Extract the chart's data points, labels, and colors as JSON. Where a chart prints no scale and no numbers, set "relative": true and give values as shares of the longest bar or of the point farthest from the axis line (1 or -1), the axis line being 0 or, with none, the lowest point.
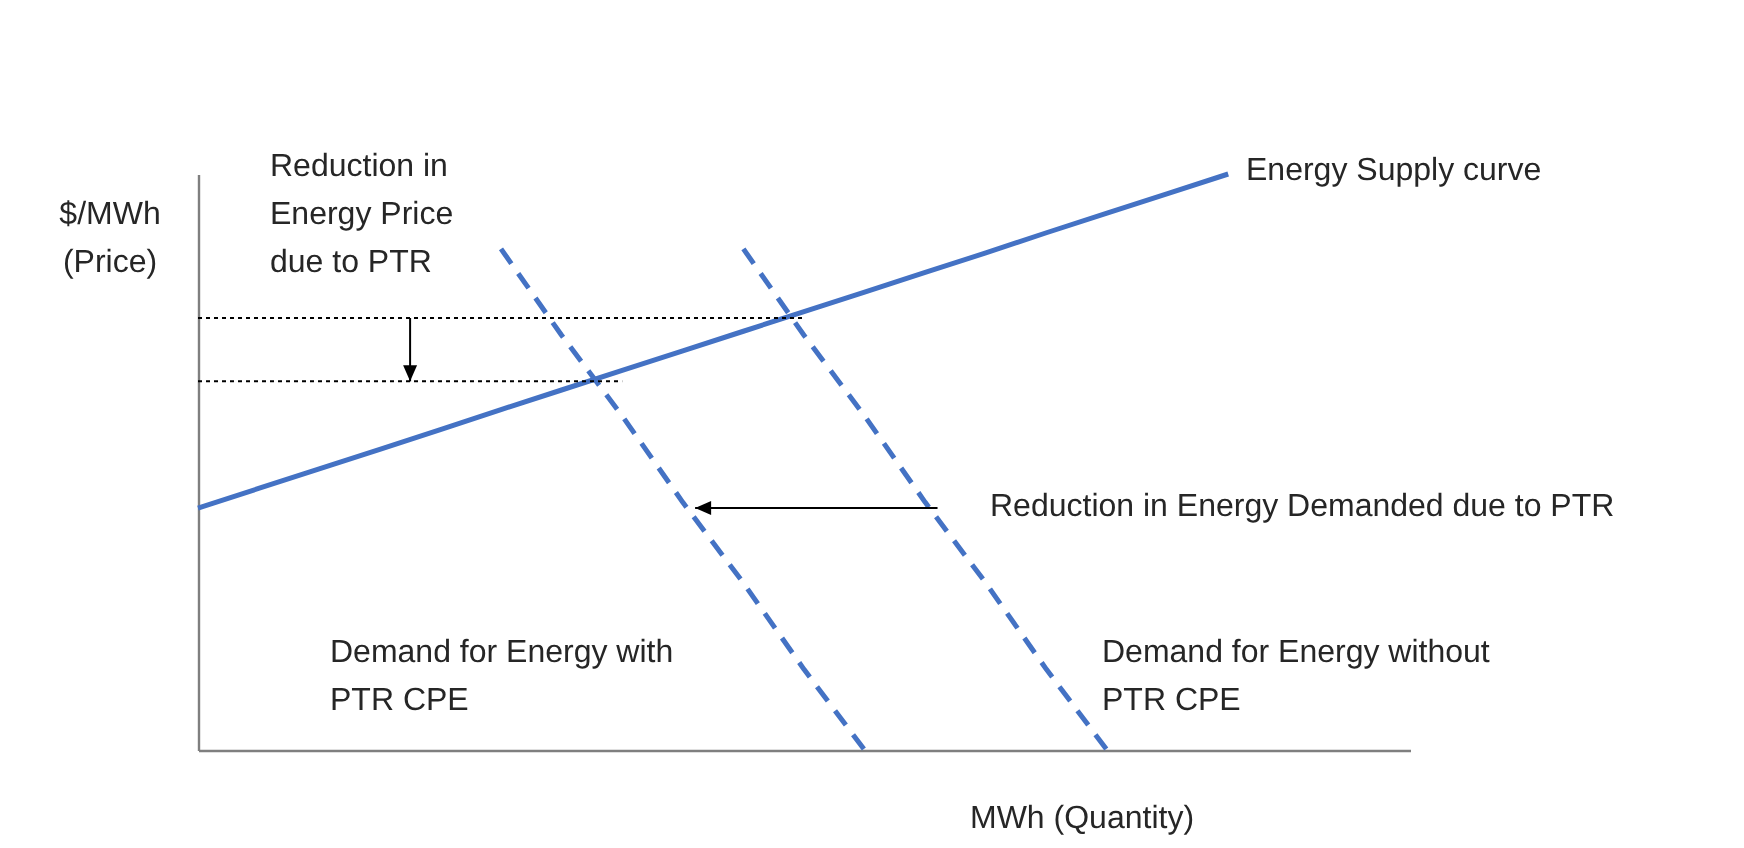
{
  "chart_data": {
    "type": "line",
    "relative": true,
    "xlabel": "MWh (Quantity)",
    "ylabel": "$/MWh (Price)",
    "annotations": [
      "Reduction in Energy Price due to PTR",
      "Reduction in Energy Demanded due to PTR"
    ],
    "categories": [
      null,
      null,
      null,
      null,
      null,
      null,
      null,
      null,
      null,
      null,
      null,
      null,
      null,
      null,
      null,
      null,
      null,
      null,
      null,
      null,
      null
    ],
    "series": [
      {
        "name": "Energy Supply curve",
        "color": "#4472c4",
        "line_style": "solid",
        "values": [
          0.42,
          0.454,
          0.488,
          0.522,
          0.556,
          0.591,
          0.625,
          0.659,
          0.693,
          0.727,
          0.761,
          0.795,
          0.829,
          0.863,
          0.898,
          0.932,
          0.966,
          1,
          null,
          null,
          null
        ]
      },
      {
        "name": "Demand for Energy without PTR CPE",
        "color": "#4472c4",
        "line_style": "dashed",
        "values": [
          null,
          null,
          null,
          null,
          null,
          null,
          null,
          null,
          null,
          0.87,
          0.72,
          0.58,
          0.43,
          0.29,
          0.14,
          0,
          null,
          null,
          null,
          null,
          null
        ]
      },
      {
        "name": "Demand for Energy with PTR CPE",
        "color": "#4472c4",
        "line_style": "dashed",
        "values": [
          null,
          null,
          null,
          null,
          null,
          0.87,
          0.72,
          0.58,
          0.43,
          0.29,
          0.14,
          0,
          null,
          null,
          null,
          null,
          null,
          null,
          null,
          null,
          null
        ]
      },
      {
        "color": "#000000",
        "line_style": "dotted",
        "values": [
          0.75,
          0.75,
          0.75,
          0.75,
          0.75,
          0.75,
          0.75,
          0.75,
          0.75,
          0.75,
          0.75,
          null,
          null,
          null,
          null,
          null,
          null,
          null,
          null,
          null,
          null
        ]
      },
      {
        "color": "#000000",
        "line_style": "dotted",
        "values": [
          0.64,
          0.64,
          0.64,
          0.64,
          0.64,
          0.64,
          0.64,
          0.64,
          null,
          null,
          null,
          null,
          null,
          null,
          null,
          null,
          null,
          null,
          null,
          null,
          null
        ]
      }
    ]
  }
}
